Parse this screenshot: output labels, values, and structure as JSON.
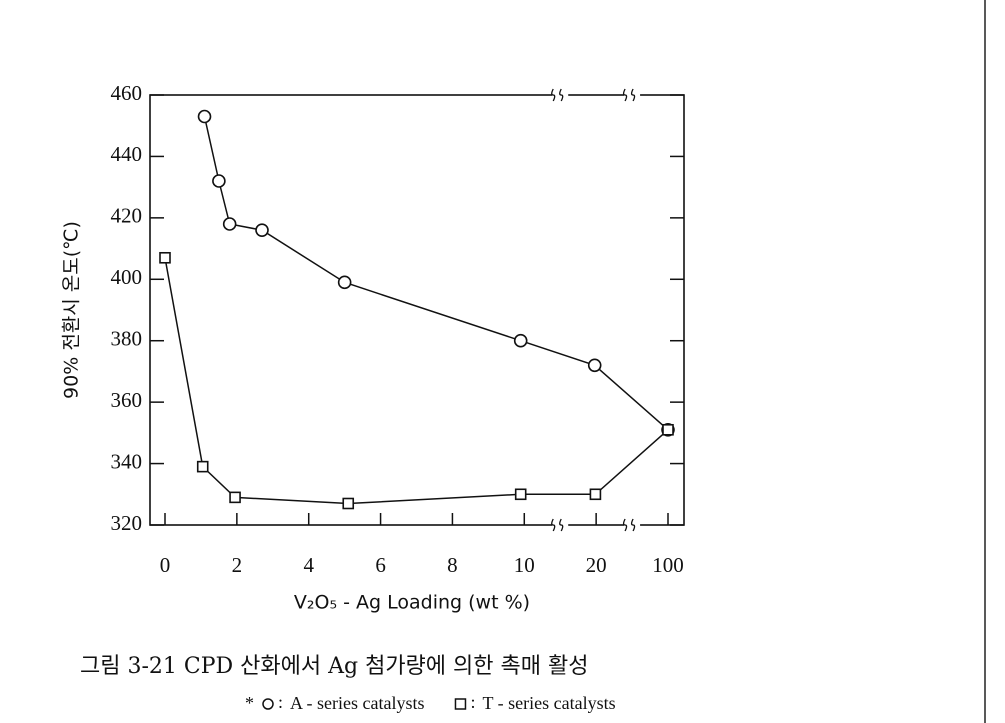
{
  "chart_data": {
    "type": "line",
    "caption": "그림 3-21  CPD 산화에서 Ag 첨가량에 의한 촉매 활성",
    "x_label": "V₂O₅ - Ag Loading (wt %)",
    "y_label": "90% 전환시 온도(℃)",
    "legend_marker": "*",
    "legend_separator": ":",
    "xlim": [
      0,
      100
    ],
    "xticks": [
      0,
      2,
      4,
      6,
      8,
      10,
      20,
      100
    ],
    "x_broken": true,
    "ylim": [
      320,
      460
    ],
    "yticks": [
      320,
      340,
      360,
      380,
      400,
      420,
      440,
      460
    ],
    "series": [
      {
        "name": "A - series catalysts",
        "marker": "circle",
        "color": "#111111",
        "x": [
          1.1,
          1.5,
          1.8,
          2.7,
          5,
          9.9,
          19.8,
          100
        ],
        "values": [
          453,
          432,
          418,
          416,
          399,
          380,
          372,
          351
        ]
      },
      {
        "name": "T - series catalysts",
        "marker": "square",
        "color": "#111111",
        "x": [
          0,
          1.05,
          1.95,
          5.1,
          9.9,
          19.9,
          100
        ],
        "values": [
          407,
          339,
          329,
          327,
          330,
          330,
          351
        ]
      }
    ]
  }
}
